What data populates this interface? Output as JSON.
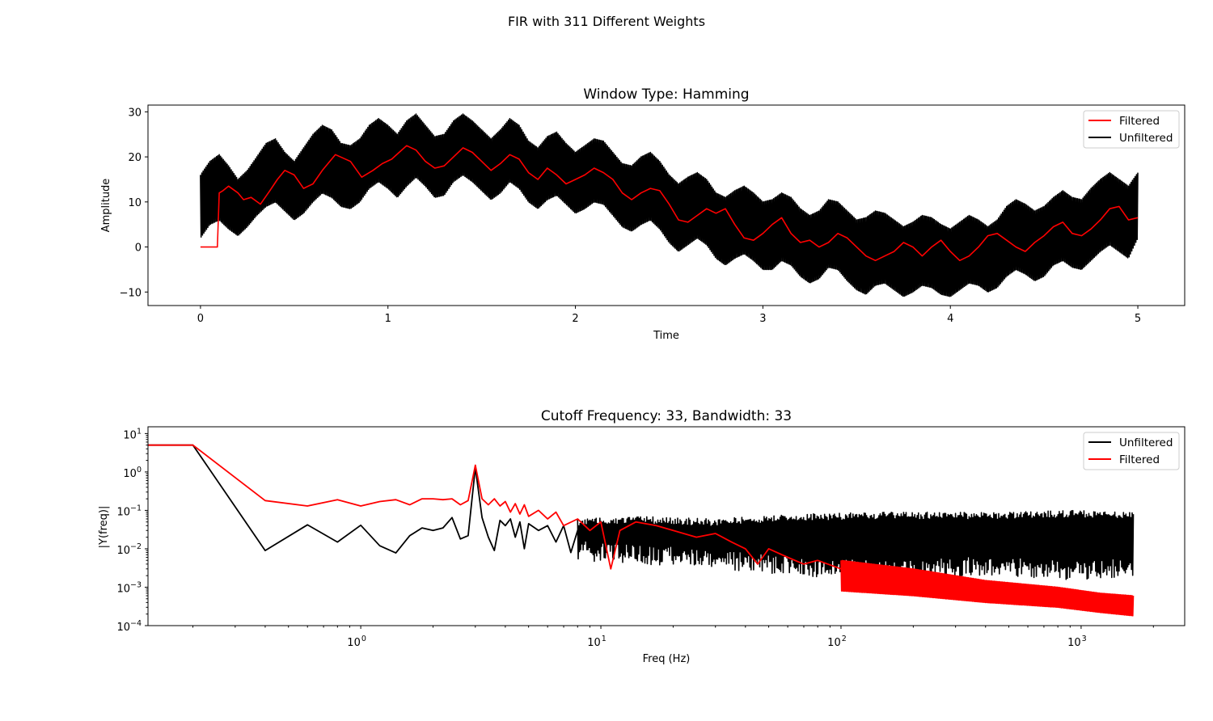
{
  "figure": {
    "suptitle": "FIR with 311 Different Weights"
  },
  "colors": {
    "filtered": "#ff0000",
    "unfiltered": "#000000",
    "axes": "#000000",
    "background": "#ffffff"
  },
  "chart_data": [
    {
      "type": "line",
      "title": "Window Type: Hamming",
      "xlabel": "Time",
      "ylabel": "Amplitude",
      "xlim": [
        -0.28,
        5.25
      ],
      "ylim": [
        -13,
        31.5
      ],
      "xticks": [
        0,
        1,
        2,
        3,
        4,
        5
      ],
      "xtick_labels": [
        "0",
        "1",
        "2",
        "3",
        "4",
        "5"
      ],
      "yticks": [
        -10,
        0,
        10,
        20,
        30
      ],
      "ytick_labels": [
        "−10",
        "0",
        "10",
        "20",
        "30"
      ],
      "grid": false,
      "legend": {
        "placement": "upper right",
        "entries": [
          "Filtered",
          "Unfiltered"
        ]
      },
      "series": [
        {
          "name": "Filtered",
          "color": "#ff0000",
          "x": [
            0,
            0.09,
            0.1,
            0.12,
            0.15,
            0.2,
            0.23,
            0.27,
            0.32,
            0.37,
            0.41,
            0.45,
            0.5,
            0.55,
            0.6,
            0.65,
            0.72,
            0.8,
            0.86,
            0.92,
            0.97,
            1.02,
            1.06,
            1.1,
            1.15,
            1.2,
            1.25,
            1.3,
            1.35,
            1.4,
            1.45,
            1.5,
            1.55,
            1.6,
            1.65,
            1.7,
            1.75,
            1.8,
            1.85,
            1.9,
            1.95,
            2.0,
            2.05,
            2.1,
            2.15,
            2.2,
            2.25,
            2.3,
            2.35,
            2.4,
            2.45,
            2.5,
            2.55,
            2.6,
            2.65,
            2.7,
            2.75,
            2.8,
            2.85,
            2.9,
            2.95,
            3.0,
            3.05,
            3.1,
            3.15,
            3.2,
            3.25,
            3.3,
            3.35,
            3.4,
            3.45,
            3.5,
            3.55,
            3.6,
            3.65,
            3.7,
            3.75,
            3.8,
            3.85,
            3.9,
            3.95,
            4.0,
            4.05,
            4.1,
            4.15,
            4.2,
            4.25,
            4.3,
            4.35,
            4.4,
            4.45,
            4.5,
            4.55,
            4.6,
            4.65,
            4.7,
            4.75,
            4.8,
            4.85,
            4.9,
            4.95,
            5.0
          ],
          "y": [
            0,
            0,
            12,
            12.5,
            13.5,
            12,
            10.5,
            11,
            9.5,
            12.5,
            15,
            17,
            16,
            13,
            14,
            17,
            20.5,
            19,
            15.5,
            17,
            18.5,
            19.5,
            21,
            22.5,
            21.5,
            19,
            17.5,
            18,
            20,
            22,
            21,
            19,
            17,
            18.5,
            20.5,
            19.5,
            16.5,
            15,
            17.5,
            16,
            14,
            15,
            16,
            17.5,
            16.5,
            15,
            12,
            10.5,
            12,
            13,
            12.5,
            9.5,
            6,
            5.5,
            7,
            8.5,
            7.5,
            8.5,
            5,
            2,
            1.5,
            3,
            5,
            6.5,
            3,
            1,
            1.5,
            0,
            1,
            3,
            2,
            0,
            -2,
            -3,
            -2,
            -1,
            1,
            0,
            -2,
            0,
            1.5,
            -1,
            -3,
            -2,
            0,
            2.5,
            3,
            1.5,
            0,
            -1,
            1,
            2.5,
            4.5,
            5.5,
            3,
            2.5,
            4,
            6,
            8.5,
            9,
            6,
            6.5
          ]
        },
        {
          "name": "Unfiltered",
          "color": "#000000",
          "x": [
            0,
            0.05,
            0.1,
            0.15,
            0.2,
            0.25,
            0.3,
            0.35,
            0.4,
            0.45,
            0.5,
            0.55,
            0.6,
            0.65,
            0.7,
            0.75,
            0.8,
            0.85,
            0.9,
            0.95,
            1.0,
            1.05,
            1.1,
            1.15,
            1.2,
            1.25,
            1.3,
            1.35,
            1.4,
            1.45,
            1.5,
            1.55,
            1.6,
            1.65,
            1.7,
            1.75,
            1.8,
            1.85,
            1.9,
            1.95,
            2.0,
            2.05,
            2.1,
            2.15,
            2.2,
            2.25,
            2.3,
            2.35,
            2.4,
            2.45,
            2.5,
            2.55,
            2.6,
            2.65,
            2.7,
            2.75,
            2.8,
            2.85,
            2.9,
            2.95,
            3.0,
            3.05,
            3.1,
            3.15,
            3.2,
            3.25,
            3.3,
            3.35,
            3.4,
            3.45,
            3.5,
            3.55,
            3.6,
            3.65,
            3.7,
            3.75,
            3.8,
            3.85,
            3.9,
            3.95,
            4.0,
            4.05,
            4.1,
            4.15,
            4.2,
            4.25,
            4.3,
            4.35,
            4.4,
            4.45,
            4.5,
            4.55,
            4.6,
            4.65,
            4.7,
            4.75,
            4.8,
            4.85,
            4.9,
            4.95,
            5.0
          ],
          "y_upper": [
            16,
            19,
            20.5,
            18,
            15,
            17,
            20,
            23,
            24,
            21,
            19,
            22,
            25,
            27,
            26,
            23,
            22.5,
            24,
            27,
            28.5,
            27,
            25,
            28,
            29.5,
            27,
            24.5,
            25,
            28,
            29.5,
            28,
            26,
            24,
            26,
            28.5,
            27,
            23.5,
            22,
            24.5,
            25.5,
            23,
            21,
            22.5,
            24,
            23.5,
            21,
            18.5,
            18,
            20,
            21,
            19,
            16,
            14,
            15.5,
            16.5,
            15,
            12,
            11,
            12.5,
            13.5,
            12,
            10,
            10.5,
            12,
            11,
            8.5,
            7,
            8,
            10.5,
            10,
            8,
            6,
            6.5,
            8,
            7.5,
            6,
            4.5,
            5.5,
            7,
            6.5,
            5,
            4,
            5.5,
            7,
            6,
            4.5,
            6,
            9,
            10.5,
            9.5,
            8,
            9,
            11,
            12.5,
            11,
            10.5,
            13,
            15,
            16.5,
            15,
            13.5,
            16.5
          ],
          "y_lower": [
            2,
            5,
            6,
            4,
            2.5,
            4.5,
            7,
            9,
            10,
            8,
            6,
            7.5,
            10,
            12,
            11,
            9,
            8.5,
            10,
            13,
            14.5,
            13,
            11,
            13.5,
            15.5,
            13.5,
            11,
            11.5,
            14.5,
            16,
            14.5,
            12.5,
            10.5,
            12,
            14.5,
            13,
            10,
            8.5,
            10.5,
            11.5,
            9.5,
            7.5,
            8.5,
            10,
            9.5,
            7,
            4.5,
            3.5,
            5,
            6,
            4,
            1,
            -1,
            0.5,
            2,
            0.5,
            -2.5,
            -4,
            -2.5,
            -1.5,
            -3,
            -5,
            -5,
            -3,
            -4,
            -6.5,
            -8,
            -7,
            -4.5,
            -5,
            -7.5,
            -9.5,
            -10.5,
            -8.5,
            -8,
            -9.5,
            -11,
            -10,
            -8.5,
            -9,
            -10.5,
            -11,
            -9.5,
            -8,
            -8.5,
            -10,
            -9,
            -6.5,
            -5,
            -6,
            -7.5,
            -6.5,
            -4,
            -3,
            -4.5,
            -5,
            -3,
            -1,
            0.5,
            -1,
            -2.5,
            2
          ]
        }
      ]
    },
    {
      "type": "line",
      "title": "Cutoff Frequency: 33, Bandwidth: 33",
      "xlabel": "Freq (Hz)",
      "ylabel": "|Y(freq)|",
      "xscale": "log",
      "yscale": "log",
      "xlim": [
        0.13,
        2700
      ],
      "ylim": [
        0.0001,
        15
      ],
      "xticks": [
        1,
        10,
        100,
        1000
      ],
      "xtick_labels": [
        {
          "base": "10",
          "exp": "0"
        },
        {
          "base": "10",
          "exp": "1"
        },
        {
          "base": "10",
          "exp": "2"
        },
        {
          "base": "10",
          "exp": "3"
        }
      ],
      "yticks": [
        0.0001,
        0.001,
        0.01,
        0.1,
        1,
        10
      ],
      "ytick_labels": [
        {
          "base": "10",
          "exp": "−4"
        },
        {
          "base": "10",
          "exp": "−3"
        },
        {
          "base": "10",
          "exp": "−2"
        },
        {
          "base": "10",
          "exp": "−1"
        },
        {
          "base": "10",
          "exp": "0"
        },
        {
          "base": "10",
          "exp": "1"
        }
      ],
      "grid": false,
      "legend": {
        "placement": "upper right",
        "entries": [
          "Unfiltered",
          "Filtered"
        ]
      },
      "series": [
        {
          "name": "Unfiltered",
          "color": "#000000",
          "x": [
            0.13,
            0.2,
            0.4,
            0.6,
            0.8,
            1.0,
            1.2,
            1.4,
            1.6,
            1.8,
            2.0,
            2.2,
            2.4,
            2.6,
            2.8,
            3.0,
            3.2,
            3.4,
            3.6,
            3.8,
            4.0,
            4.2,
            4.4,
            4.6,
            4.8,
            5.0,
            5.5,
            6.0,
            6.5,
            7.0,
            7.5,
            8.0,
            9.0,
            10,
            12,
            15,
            20,
            30,
            40,
            60,
            100,
            200,
            400,
            800,
            1300,
            1650
          ],
          "y": [
            5,
            5,
            0.009,
            0.042,
            0.015,
            0.041,
            0.012,
            0.0078,
            0.022,
            0.035,
            0.03,
            0.035,
            0.065,
            0.018,
            0.022,
            1.3,
            0.065,
            0.02,
            0.009,
            0.055,
            0.04,
            0.06,
            0.02,
            0.05,
            0.01,
            0.045,
            0.03,
            0.04,
            0.015,
            0.04,
            0.008,
            0.03,
            0.03,
            0.03,
            0.03,
            0.028,
            0.03,
            0.02,
            0.015,
            0.03,
            0.025,
            0.03,
            0.025,
            0.03,
            0.025,
            0.03
          ],
          "band_x": [
            8,
            15,
            30,
            60,
            150,
            400,
            1000,
            1650
          ],
          "band_upper": [
            0.06,
            0.07,
            0.06,
            0.08,
            0.09,
            0.09,
            0.1,
            0.09
          ],
          "band_lower": [
            0.005,
            0.004,
            0.003,
            0.002,
            0.0015,
            0.002,
            0.0015,
            0.002
          ]
        },
        {
          "name": "Filtered",
          "color": "#ff0000",
          "x": [
            0.13,
            0.2,
            0.4,
            0.6,
            0.8,
            1.0,
            1.2,
            1.4,
            1.6,
            1.8,
            2.0,
            2.2,
            2.4,
            2.6,
            2.8,
            3.0,
            3.2,
            3.4,
            3.6,
            3.8,
            4.0,
            4.2,
            4.4,
            4.6,
            4.8,
            5.0,
            5.5,
            6.0,
            6.5,
            7.0,
            8.0,
            9.0,
            10,
            11,
            12,
            14,
            17,
            20,
            25,
            30,
            35,
            40,
            45,
            50,
            60,
            70,
            80,
            100,
            150,
            200,
            300,
            500,
            800,
            1200,
            1650
          ],
          "y": [
            5,
            5,
            0.18,
            0.13,
            0.19,
            0.13,
            0.17,
            0.19,
            0.14,
            0.2,
            0.2,
            0.19,
            0.2,
            0.14,
            0.18,
            1.5,
            0.2,
            0.14,
            0.2,
            0.13,
            0.17,
            0.09,
            0.15,
            0.08,
            0.14,
            0.07,
            0.1,
            0.06,
            0.09,
            0.04,
            0.06,
            0.03,
            0.05,
            0.003,
            0.03,
            0.05,
            0.04,
            0.03,
            0.02,
            0.025,
            0.015,
            0.01,
            0.004,
            0.01,
            0.006,
            0.004,
            0.005,
            0.003,
            0.0025,
            0.0015,
            0.0012,
            0.0009,
            0.0007,
            0.0005,
            0.0004
          ],
          "band_x": [
            100,
            200,
            400,
            800,
            1200,
            1650
          ],
          "band_upper": [
            0.005,
            0.003,
            0.0015,
            0.001,
            0.0007,
            0.0006
          ],
          "band_lower": [
            0.0008,
            0.0006,
            0.0004,
            0.0003,
            0.00022,
            0.00018
          ]
        }
      ]
    }
  ]
}
